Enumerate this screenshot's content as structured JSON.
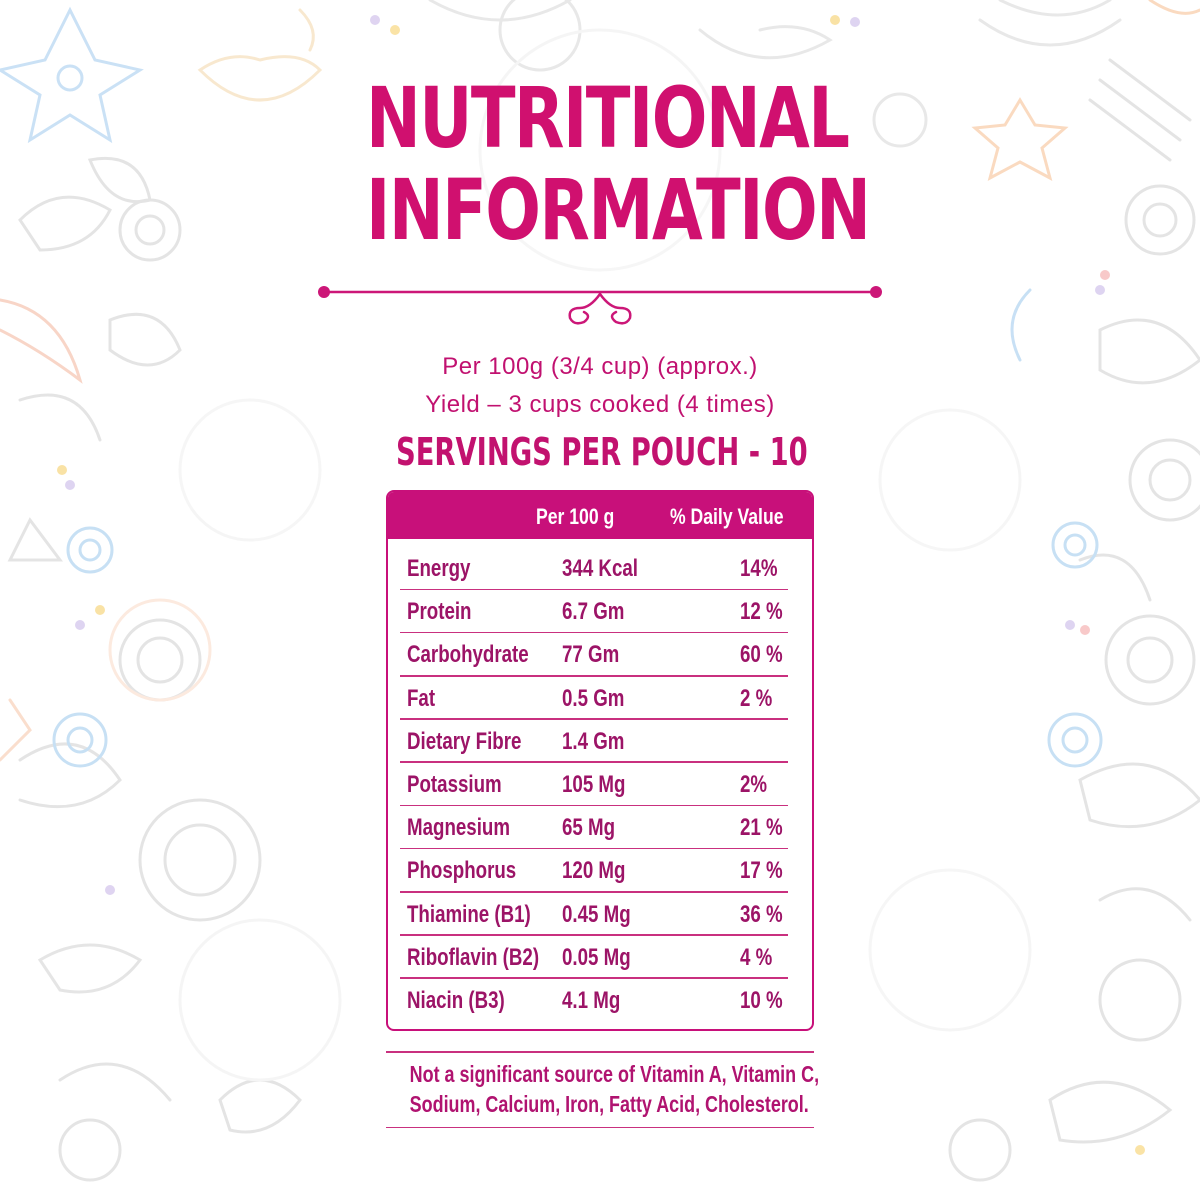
{
  "header": {
    "title_line1": "NUTRITIONAL",
    "title_line2": "INFORMATION"
  },
  "serving_info": {
    "per": "Per 100g (3/4 cup) (approx.)",
    "yield": "Yield – 3 cups cooked (4 times)",
    "servings": "SERVINGS PER POUCH - 10"
  },
  "table": {
    "headers": [
      "Per 100 g",
      "% Daily Value"
    ],
    "rows": [
      {
        "nutrient": "Energy",
        "amount": "344 Kcal",
        "daily_value": "14%"
      },
      {
        "nutrient": "Protein",
        "amount": "6.7 Gm",
        "daily_value": "12 %"
      },
      {
        "nutrient": "Carbohydrate",
        "amount": "77 Gm",
        "daily_value": "60 %"
      },
      {
        "nutrient": "Fat",
        "amount": "0.5 Gm",
        "daily_value": "2 %"
      },
      {
        "nutrient": "Dietary Fibre",
        "amount": "1.4 Gm",
        "daily_value": ""
      },
      {
        "nutrient": "Potassium",
        "amount": "105 Mg",
        "daily_value": "2%"
      },
      {
        "nutrient": "Magnesium",
        "amount": "65 Mg",
        "daily_value": "21 %"
      },
      {
        "nutrient": "Phosphorus",
        "amount": "120 Mg",
        "daily_value": "17 %"
      },
      {
        "nutrient": "Thiamine (B1)",
        "amount": "0.45 Mg",
        "daily_value": "36 %"
      },
      {
        "nutrient": "Riboflavin (B2)",
        "amount": "0.05 Mg",
        "daily_value": "4 %"
      },
      {
        "nutrient": "Niacin (B3)",
        "amount": "4.1 Mg",
        "daily_value": "10 %"
      }
    ]
  },
  "footnote": {
    "line1": "Not a significant source of Vitamin A, Vitamin C,",
    "line2": "Sodium, Calcium, Iron, Fatty Acid, Cholesterol."
  },
  "colors": {
    "accent": "#d0106f",
    "table_header_bg": "#c8107a",
    "body_text": "#9c1467"
  }
}
